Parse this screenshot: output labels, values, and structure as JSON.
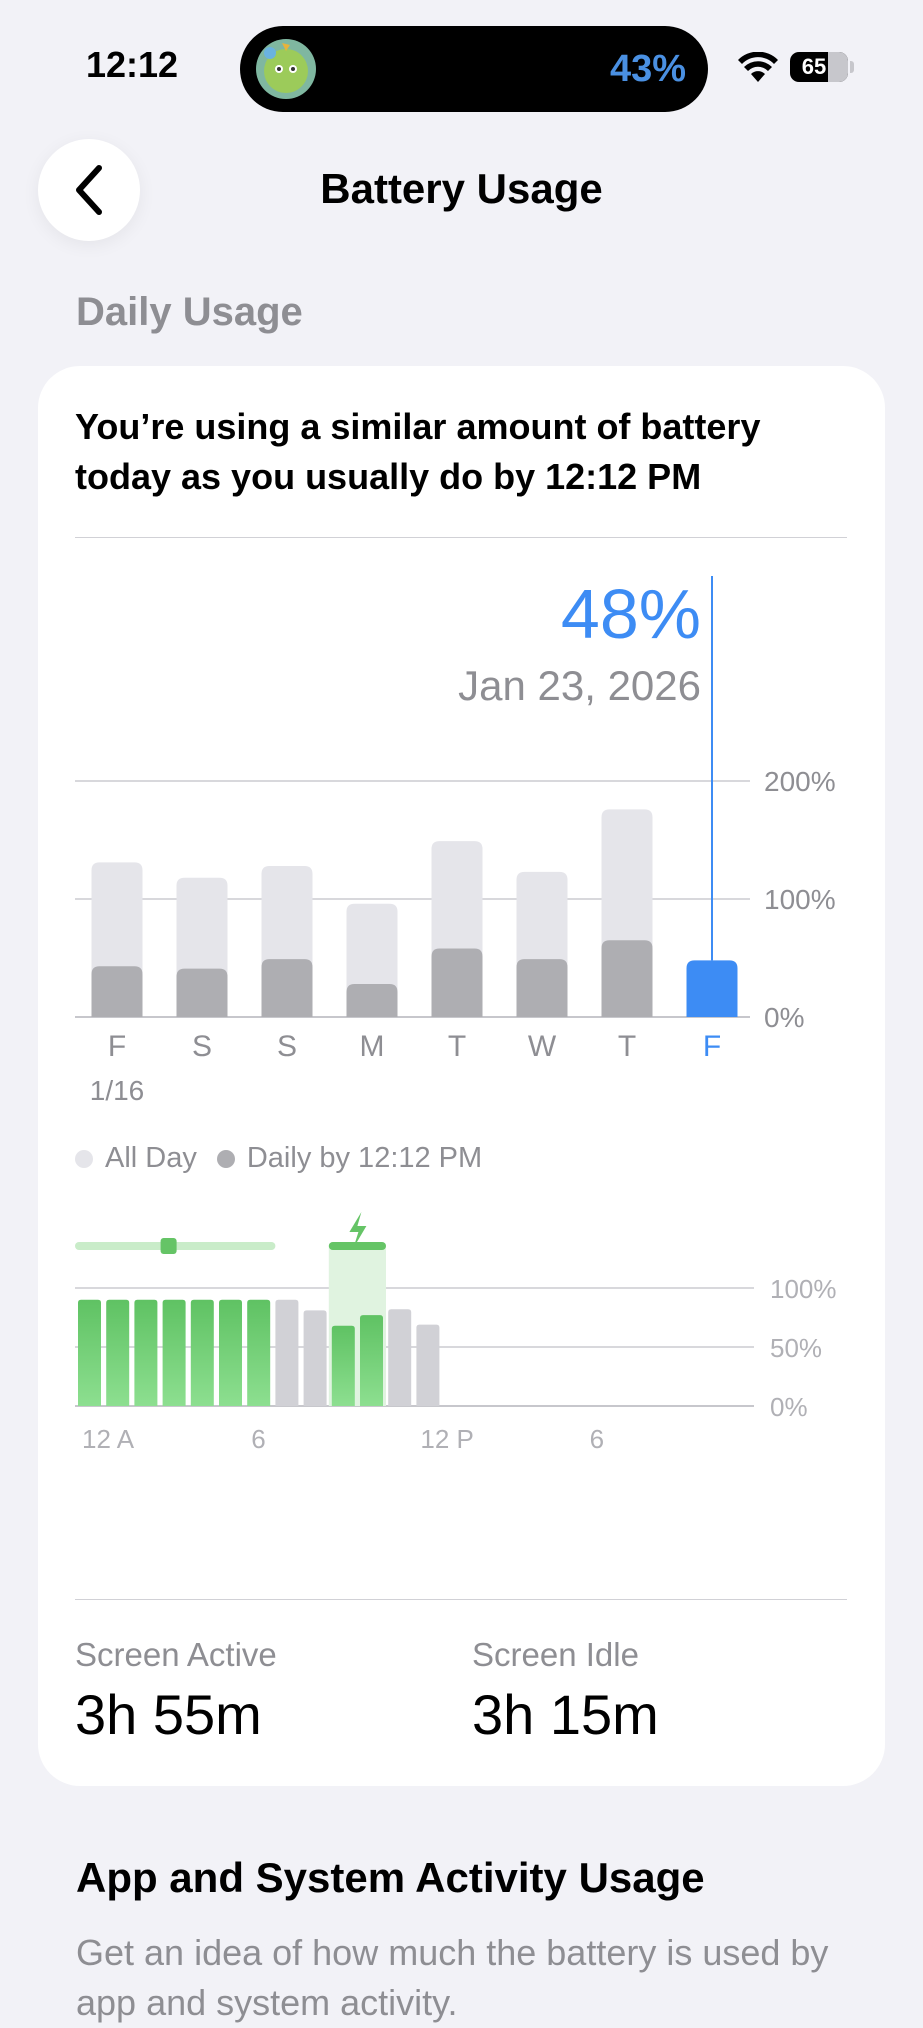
{
  "status_bar": {
    "time": "12:12",
    "island_percent": "43%",
    "battery_level": "65"
  },
  "header": {
    "title": "Battery Usage"
  },
  "daily_usage": {
    "section_title": "Daily Usage",
    "headline": "You’re using a similar amount of battery today as you usually do by 12:12 PM",
    "selected": {
      "percent": "48%",
      "date": "Jan 23, 2026"
    },
    "legend": {
      "all_day": "All Day",
      "daily_by": "Daily by 12:12 PM"
    },
    "colors": {
      "all_day": "#e5e5ea",
      "daily_by": "#aeaeb2",
      "selected": "#3d8cf4",
      "battery_green": "#65c466",
      "charging_band": "#c9ecc9"
    }
  },
  "chart_data": [
    {
      "type": "bar",
      "y_tick_labels": [
        "200%",
        "100%",
        "0%"
      ],
      "ylim": [
        0,
        200
      ],
      "categories": [
        "F",
        "S",
        "S",
        "M",
        "T",
        "W",
        "T",
        "F"
      ],
      "date_label": "1/16",
      "series": [
        {
          "name": "All Day",
          "values": [
            131,
            118,
            128,
            96,
            149,
            123,
            176,
            0
          ]
        },
        {
          "name": "Daily by 12:12 PM",
          "values": [
            43,
            41,
            49,
            28,
            58,
            49,
            65,
            48
          ]
        }
      ],
      "selected_index": 7
    },
    {
      "type": "bar",
      "y_tick_labels": [
        "100%",
        "50%",
        "0%"
      ],
      "ylim": [
        0,
        100
      ],
      "x_tick_labels": [
        {
          "label": "12 A",
          "hour": 0
        },
        {
          "label": "6",
          "hour": 6
        },
        {
          "label": "12 P",
          "hour": 12
        },
        {
          "label": "6",
          "hour": 18
        }
      ],
      "hours": [
        0,
        1,
        2,
        3,
        4,
        5,
        6,
        7,
        8,
        9,
        10,
        11,
        12
      ],
      "levels": [
        90,
        90,
        90,
        90,
        90,
        90,
        90,
        90,
        81,
        68,
        77,
        82,
        69
      ],
      "bar_states": [
        "charging",
        "charging",
        "charging",
        "charging",
        "charging",
        "charging",
        "charging",
        "discharging",
        "discharging",
        "charging",
        "charging",
        "discharging",
        "discharging"
      ]
    }
  ],
  "stats": {
    "screen_active": {
      "label": "Screen Active",
      "value": "3h 55m"
    },
    "screen_idle": {
      "label": "Screen Idle",
      "value": "3h 15m"
    }
  },
  "activity": {
    "title": "App and System Activity Usage",
    "description": "Get an idea of how much the battery is used by app and system activity."
  }
}
